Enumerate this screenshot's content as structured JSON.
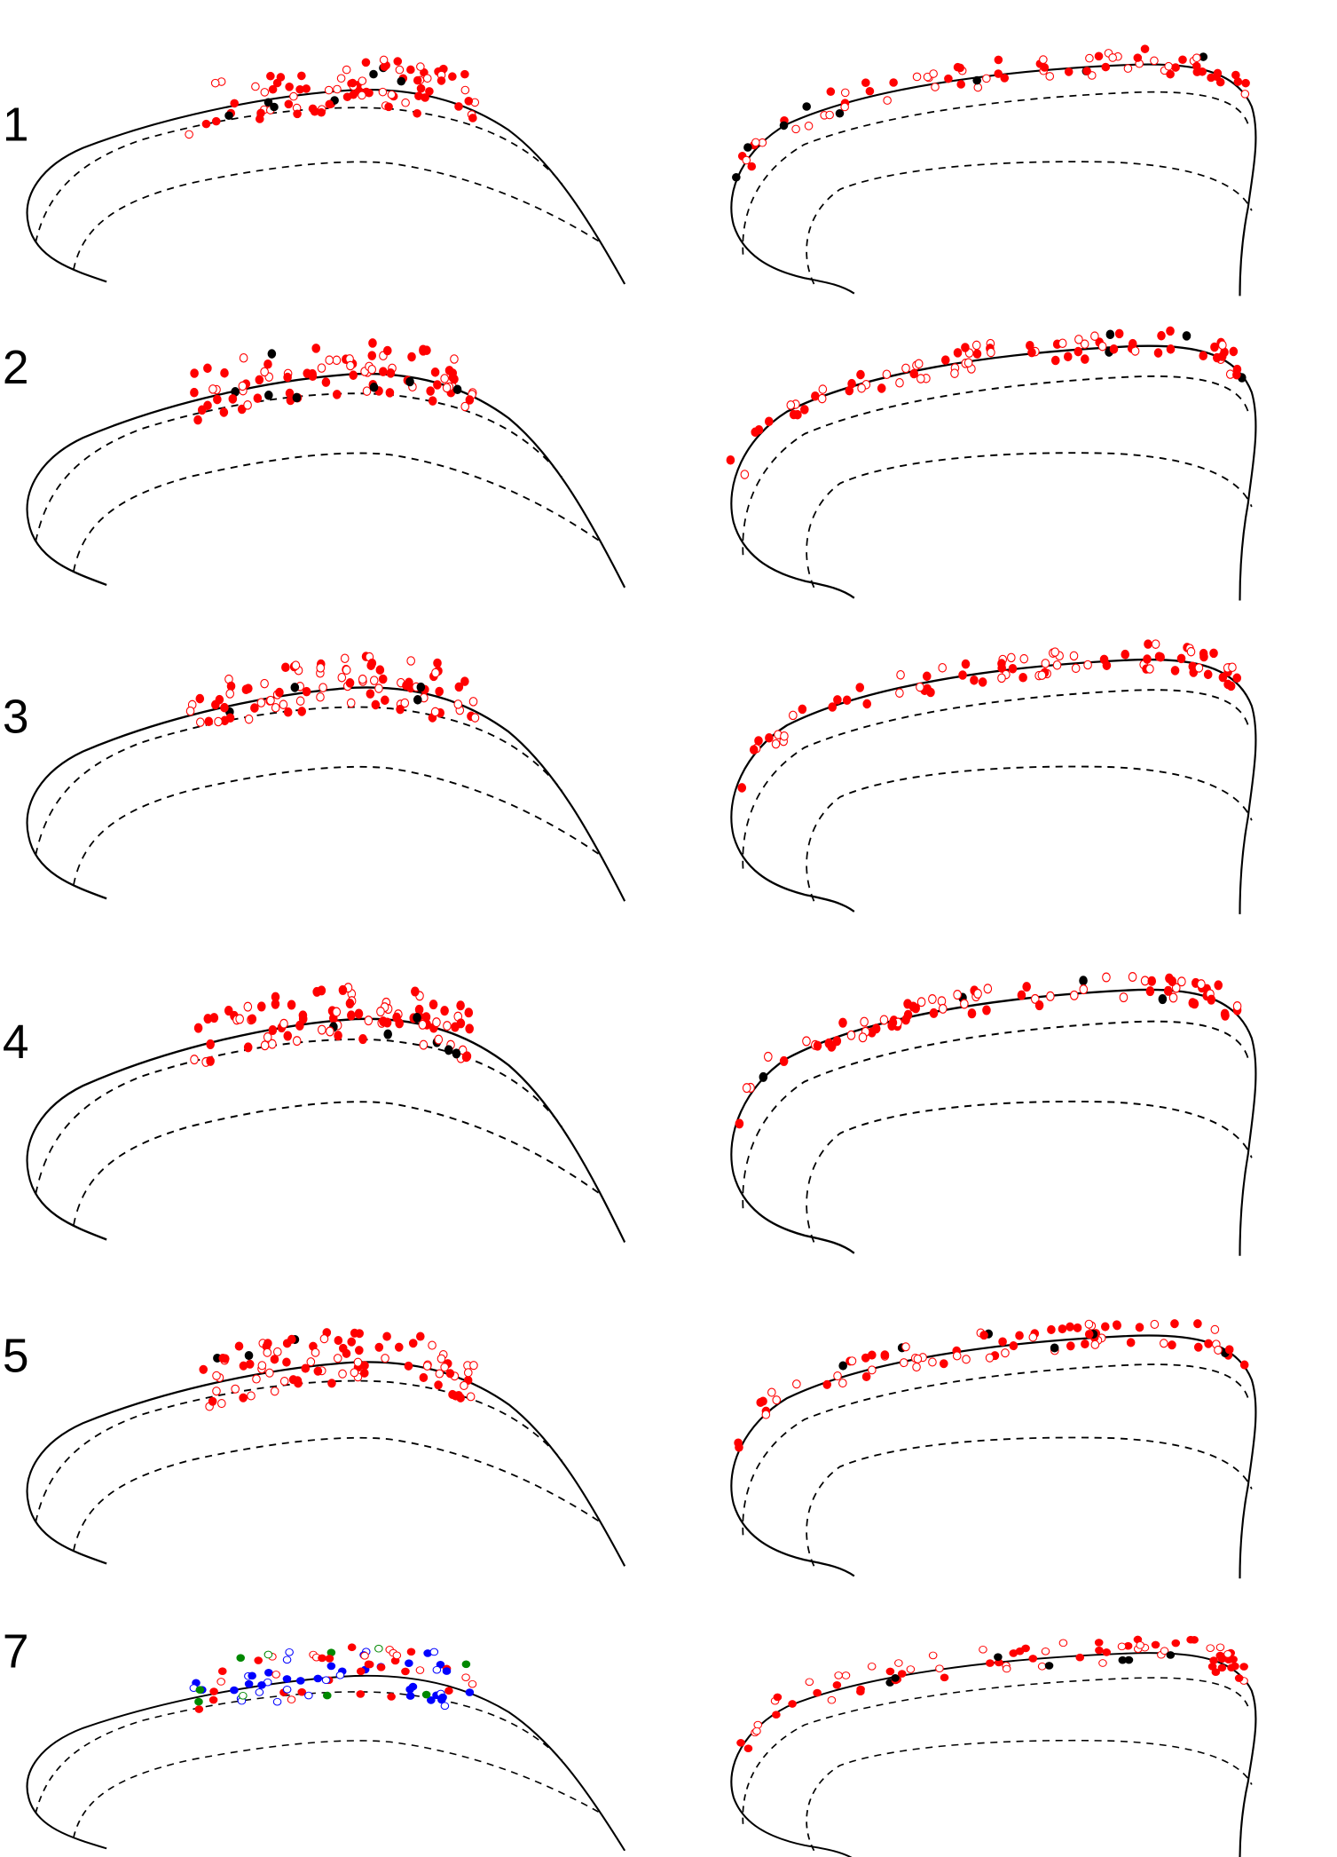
{
  "panels": [
    {
      "label": "1"
    },
    {
      "label": "2"
    },
    {
      "label": "3"
    },
    {
      "label": "4"
    },
    {
      "label": "5"
    },
    {
      "label": "7"
    }
  ]
}
